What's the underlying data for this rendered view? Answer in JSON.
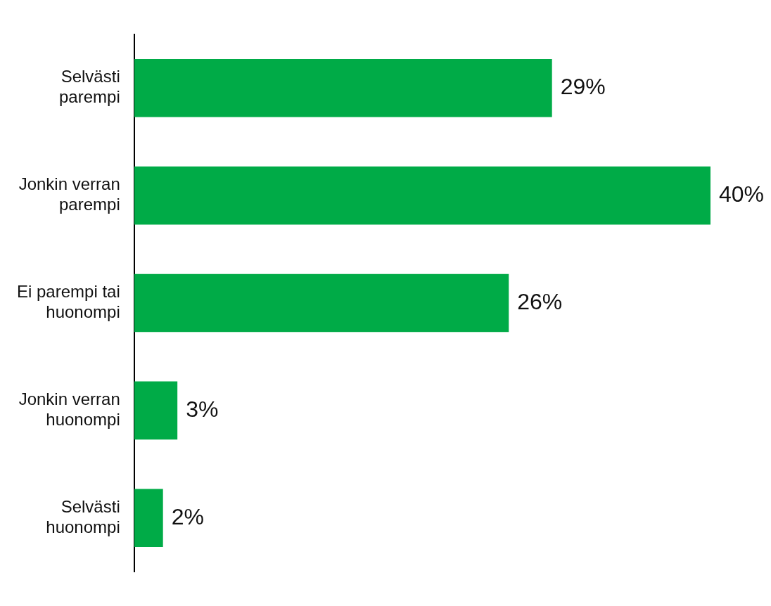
{
  "chart_data": {
    "type": "bar",
    "orientation": "horizontal",
    "categories": [
      "Selvästi parempi",
      "Jonkin verran parempi",
      "Ei parempi tai huonompi",
      "Jonkin verran huonompi",
      "Selvästi huonompi"
    ],
    "values": [
      29,
      40,
      26,
      3,
      2
    ],
    "color": "#00ab47",
    "value_labels": [
      "29%",
      "40%",
      "26%",
      "3%",
      "2%"
    ],
    "grid": false,
    "legend": false
  }
}
